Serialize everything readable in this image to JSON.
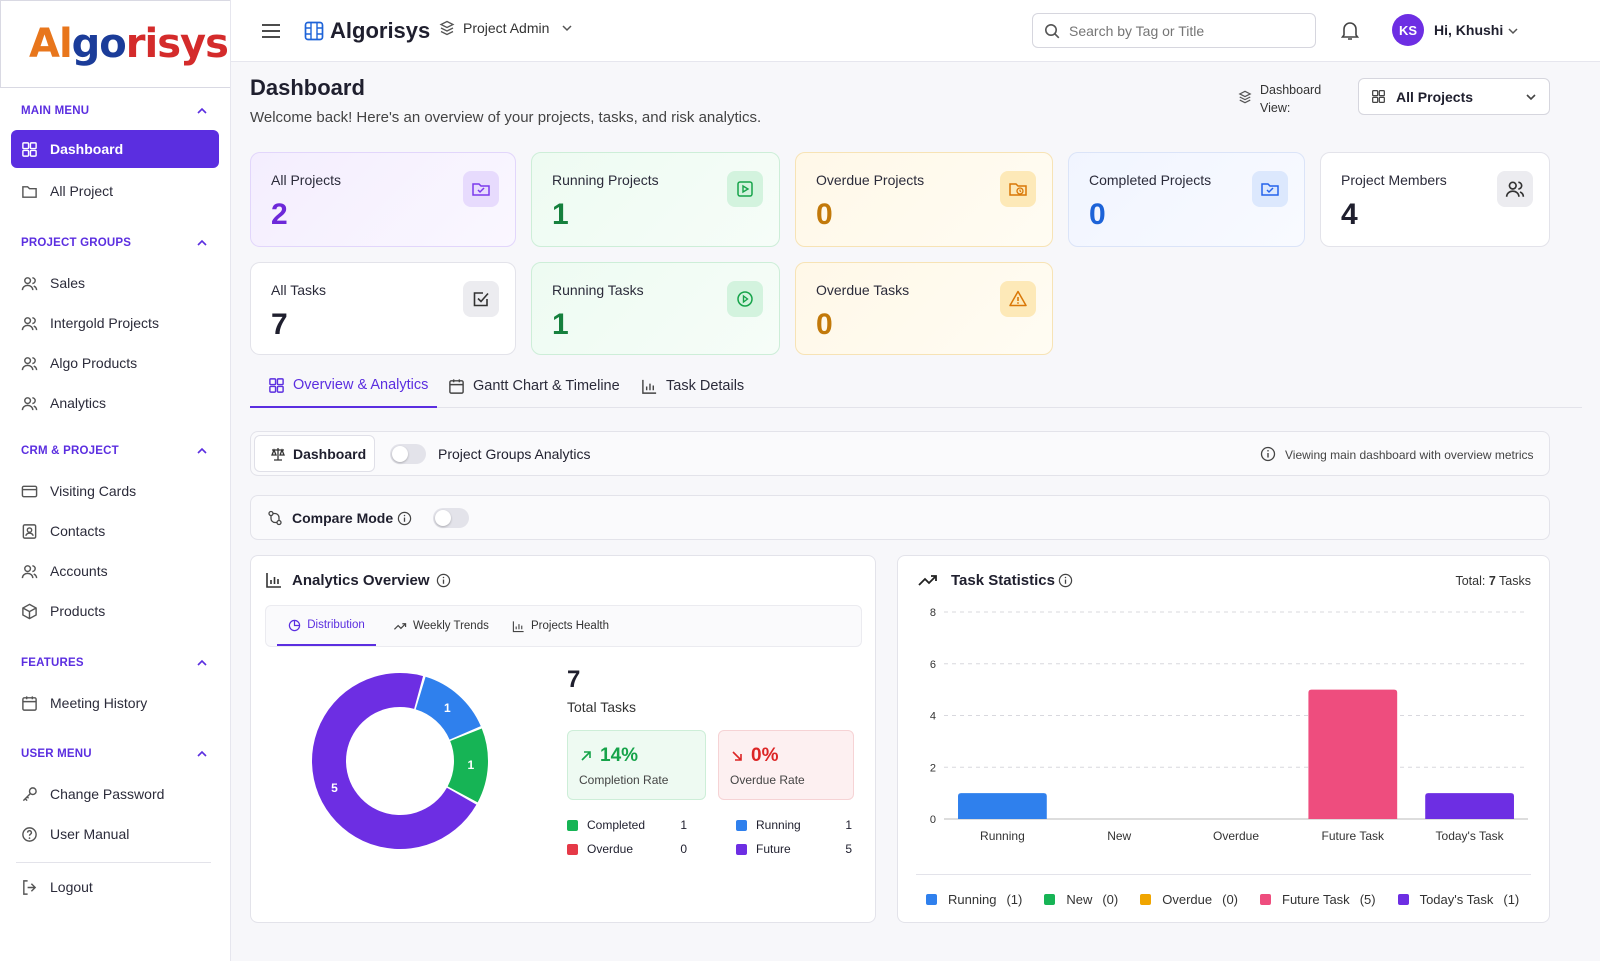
{
  "brand": {
    "logo_part1": "Al",
    "logo_part2": "go",
    "logo_part3": "risys",
    "name": "Algorisys"
  },
  "topbar": {
    "project_label": "Project Admin",
    "search_placeholder": "Search by Tag or Title",
    "user_initials": "KS",
    "greeting": "Hi, Khushi"
  },
  "sidebar": {
    "sections": [
      {
        "title": "MAIN MENU",
        "items": [
          {
            "label": "Dashboard",
            "icon": "grid-icon"
          },
          {
            "label": "All Project",
            "icon": "folder-icon"
          }
        ]
      },
      {
        "title": "PROJECT GROUPS",
        "items": [
          {
            "label": "Sales",
            "icon": "users-icon"
          },
          {
            "label": "Intergold Projects",
            "icon": "users-icon"
          },
          {
            "label": "Algo Products",
            "icon": "users-icon"
          },
          {
            "label": "Analytics",
            "icon": "users-icon"
          }
        ]
      },
      {
        "title": "CRM & PROJECT",
        "items": [
          {
            "label": "Visiting Cards",
            "icon": "card-icon"
          },
          {
            "label": "Contacts",
            "icon": "contact-icon"
          },
          {
            "label": "Accounts",
            "icon": "users-icon"
          },
          {
            "label": "Products",
            "icon": "box-icon"
          }
        ]
      },
      {
        "title": "FEATURES",
        "items": [
          {
            "label": "Meeting History",
            "icon": "calendar-icon"
          }
        ]
      },
      {
        "title": "USER MENU",
        "items": [
          {
            "label": "Change Password",
            "icon": "key-icon"
          },
          {
            "label": "User Manual",
            "icon": "help-icon"
          }
        ]
      }
    ],
    "logout": "Logout"
  },
  "header": {
    "title": "Dashboard",
    "subtitle": "Welcome back! Here's an overview of your projects, tasks, and risk analytics.",
    "view_label_1": "Dashboard",
    "view_label_2": "View:",
    "view_select": "All Projects"
  },
  "stats": [
    {
      "title": "All Projects",
      "value": "2",
      "color": "#6d28d9"
    },
    {
      "title": "Running Projects",
      "value": "1",
      "color": "#15803d"
    },
    {
      "title": "Overdue Projects",
      "value": "0",
      "color": "#c2790a"
    },
    {
      "title": "Completed Projects",
      "value": "0",
      "color": "#1d63d8"
    },
    {
      "title": "Project Members",
      "value": "4",
      "color": "#1f1f2e"
    },
    {
      "title": "All Tasks",
      "value": "7",
      "color": "#1f1f2e"
    },
    {
      "title": "Running Tasks",
      "value": "1",
      "color": "#15803d"
    },
    {
      "title": "Overdue Tasks",
      "value": "0",
      "color": "#c2790a"
    }
  ],
  "tabs": [
    "Overview & Analytics",
    "Gantt Chart & Timeline",
    "Task Details"
  ],
  "dashboard_bar": {
    "button": "Dashboard",
    "toggle_label": "Project Groups Analytics",
    "info": "Viewing main dashboard with overview metrics"
  },
  "compare": {
    "label": "Compare Mode"
  },
  "analytics": {
    "title": "Analytics Overview",
    "subtabs": [
      "Distribution",
      "Weekly Trends",
      "Projects Health"
    ],
    "total": "7",
    "total_label": "Total Tasks",
    "completion_value": "14%",
    "completion_label": "Completion Rate",
    "overdue_value": "0%",
    "overdue_label": "Overdue Rate",
    "legend": [
      {
        "label": "Completed",
        "value": "1",
        "color": "#16b455"
      },
      {
        "label": "Running",
        "value": "1",
        "color": "#2f80ed"
      },
      {
        "label": "Overdue",
        "value": "0",
        "color": "#e53947"
      },
      {
        "label": "Future",
        "value": "5",
        "color": "#6d2ee3"
      }
    ]
  },
  "task_stats": {
    "title": "Task Statistics",
    "total_label": "Total:",
    "total_value": "7",
    "total_unit": "Tasks"
  },
  "chart_data": [
    {
      "type": "pie",
      "title": "Distribution",
      "categories": [
        "Running",
        "Completed",
        "Future"
      ],
      "values": [
        1,
        1,
        5
      ],
      "colors": [
        "#2f80ed",
        "#16b455",
        "#6d2ee3"
      ],
      "donut": true
    },
    {
      "type": "bar",
      "categories": [
        "Running",
        "New",
        "Overdue",
        "Future Task",
        "Today's Task"
      ],
      "values": [
        1,
        0,
        0,
        5,
        1
      ],
      "colors": [
        "#2f80ed",
        "#16b455",
        "#f0a500",
        "#ee4d7e",
        "#6d2ee3"
      ],
      "ylim": [
        0,
        8
      ],
      "yticks": [
        "0",
        "2",
        "4",
        "6",
        "8"
      ],
      "grid": true,
      "legend_position": "bottom",
      "legend": [
        "Running",
        "New",
        "Overdue",
        "Future Task",
        "Today's Task"
      ],
      "legend_counts": [
        "(1)",
        "(0)",
        "(0)",
        "(5)",
        "(1)"
      ]
    }
  ]
}
